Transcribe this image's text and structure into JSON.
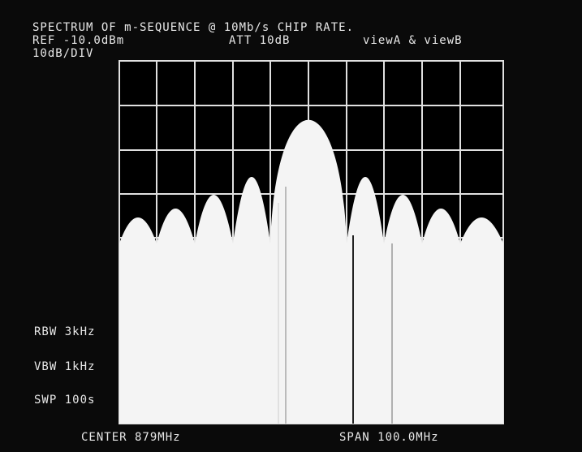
{
  "header": {
    "title": "SPECTRUM OF m-SEQUENCE @ 10Mb/s CHIP RATE.",
    "ref": "REF  -10.0dBm",
    "att": "ATT 10dB",
    "view": "viewA & viewB",
    "scale": "10dB/DIV"
  },
  "settings": {
    "rbw": "RBW 3kHz",
    "vbw": "VBW 1kHz",
    "swp": "SWP 100s"
  },
  "footer": {
    "center": "CENTER  879MHz",
    "span": "SPAN   100.0MHz"
  }
}
